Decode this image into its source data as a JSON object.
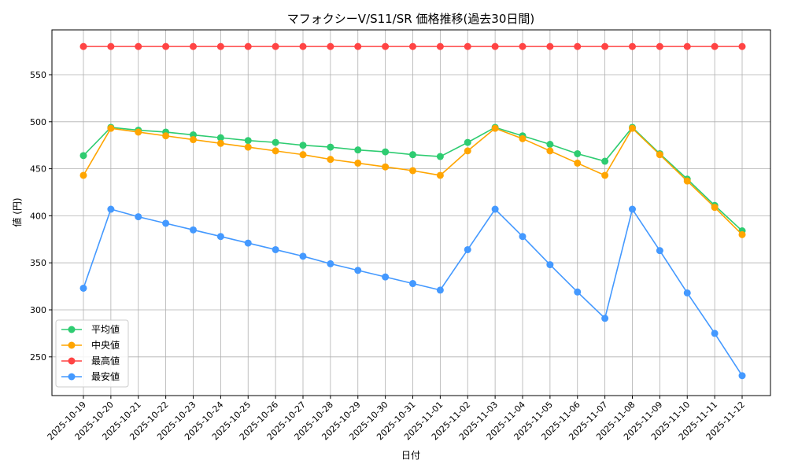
{
  "chart_data": {
    "type": "line",
    "title": "マフォクシーV/S11/SR 価格推移(過去30日間)",
    "xlabel": "日付",
    "ylabel": "値 (円)",
    "ylim": [
      212,
      594
    ],
    "yticks": [
      250,
      300,
      350,
      400,
      450,
      500,
      550
    ],
    "grid": true,
    "legend_position": "lower-left",
    "x": [
      "2025-10-19",
      "2025-10-20",
      "2025-10-21",
      "2025-10-22",
      "2025-10-23",
      "2025-10-24",
      "2025-10-25",
      "2025-10-26",
      "2025-10-27",
      "2025-10-28",
      "2025-10-29",
      "2025-10-30",
      "2025-10-31",
      "2025-11-01",
      "2025-11-02",
      "2025-11-03",
      "2025-11-04",
      "2025-11-05",
      "2025-11-06",
      "2025-11-07",
      "2025-11-08",
      "2025-11-09",
      "2025-11-10",
      "2025-11-11",
      "2025-11-12"
    ],
    "series": [
      {
        "name": "平均値",
        "color": "#2ecc71",
        "values": [
          464,
          494,
          491,
          489,
          486,
          483,
          480,
          478,
          475,
          473,
          470,
          468,
          465,
          463,
          478,
          494,
          485,
          476,
          466,
          458,
          494,
          466,
          439,
          411,
          384
        ]
      },
      {
        "name": "中央値",
        "color": "#ffa500",
        "values": [
          443,
          493,
          489,
          485,
          481,
          477,
          473,
          469,
          465,
          460,
          456,
          452,
          448,
          443,
          469,
          493,
          482,
          469,
          456,
          443,
          493,
          465,
          437,
          409,
          380
        ]
      },
      {
        "name": "最高値",
        "color": "#ff4444",
        "values": [
          580,
          580,
          580,
          580,
          580,
          580,
          580,
          580,
          580,
          580,
          580,
          580,
          580,
          580,
          580,
          580,
          580,
          580,
          580,
          580,
          580,
          580,
          580,
          580,
          580
        ]
      },
      {
        "name": "最安値",
        "color": "#4499ff",
        "values": [
          323,
          407,
          399,
          392,
          385,
          378,
          371,
          364,
          357,
          349,
          342,
          335,
          328,
          321,
          364,
          407,
          378,
          348,
          319,
          291,
          407,
          363,
          318,
          275,
          230
        ]
      }
    ]
  }
}
